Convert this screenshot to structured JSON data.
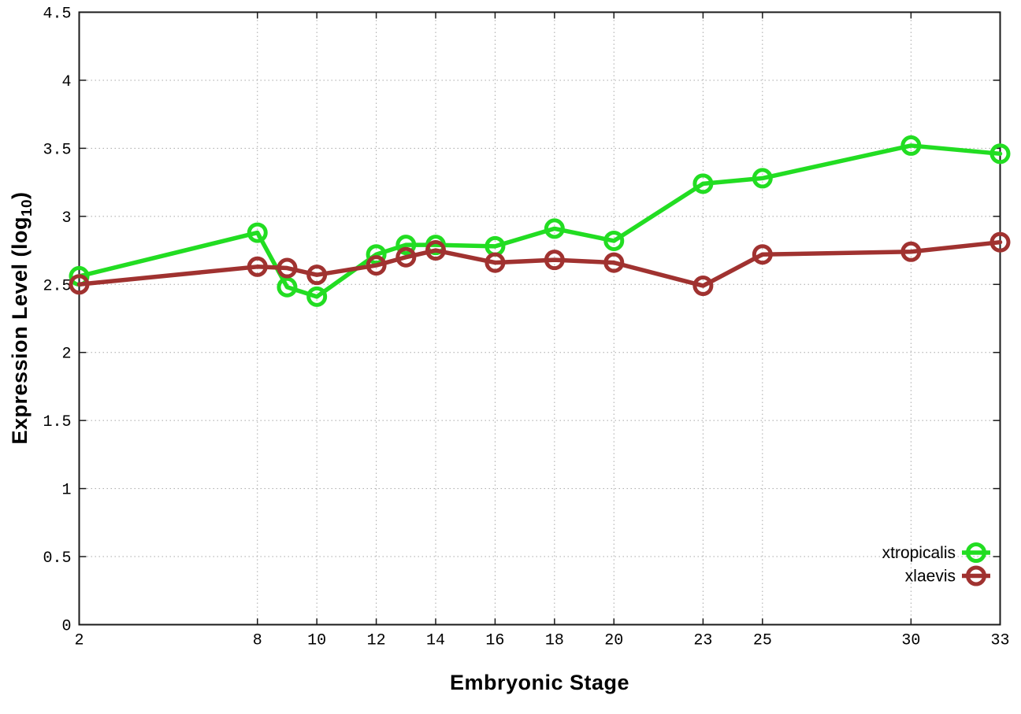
{
  "chart_data": {
    "type": "line",
    "title": "",
    "xlabel": "Embryonic Stage",
    "ylabel_main": "Expression Level (log",
    "ylabel_sub": "10",
    "ylabel_end": ")",
    "xlim": [
      2,
      33
    ],
    "ylim": [
      0,
      4.5
    ],
    "xticks": [
      2,
      8,
      10,
      12,
      14,
      16,
      18,
      20,
      23,
      25,
      30,
      33
    ],
    "yticks": [
      0,
      0.5,
      1,
      1.5,
      2,
      2.5,
      3,
      3.5,
      4,
      4.5
    ],
    "grid": true,
    "legend_position": "inside-bottom-right",
    "x": [
      2,
      8,
      9,
      10,
      12,
      13,
      14,
      16,
      18,
      20,
      23,
      25,
      30,
      33
    ],
    "series": [
      {
        "name": "xtropicalis",
        "color": "#22dd22",
        "marker": "open-circle",
        "values": [
          2.56,
          2.88,
          2.48,
          2.41,
          2.72,
          2.79,
          2.79,
          2.78,
          2.91,
          2.82,
          3.24,
          3.28,
          3.52,
          3.46
        ]
      },
      {
        "name": "xlaevis",
        "color": "#a03230",
        "marker": "open-circle",
        "values": [
          2.5,
          2.63,
          2.62,
          2.57,
          2.64,
          2.7,
          2.75,
          2.66,
          2.68,
          2.66,
          2.49,
          2.72,
          2.74,
          2.81
        ]
      }
    ]
  },
  "colors": {
    "background": "#ffffff",
    "border": "#1a1a1a",
    "grid": "#a8a8a8",
    "text": "#000000"
  }
}
